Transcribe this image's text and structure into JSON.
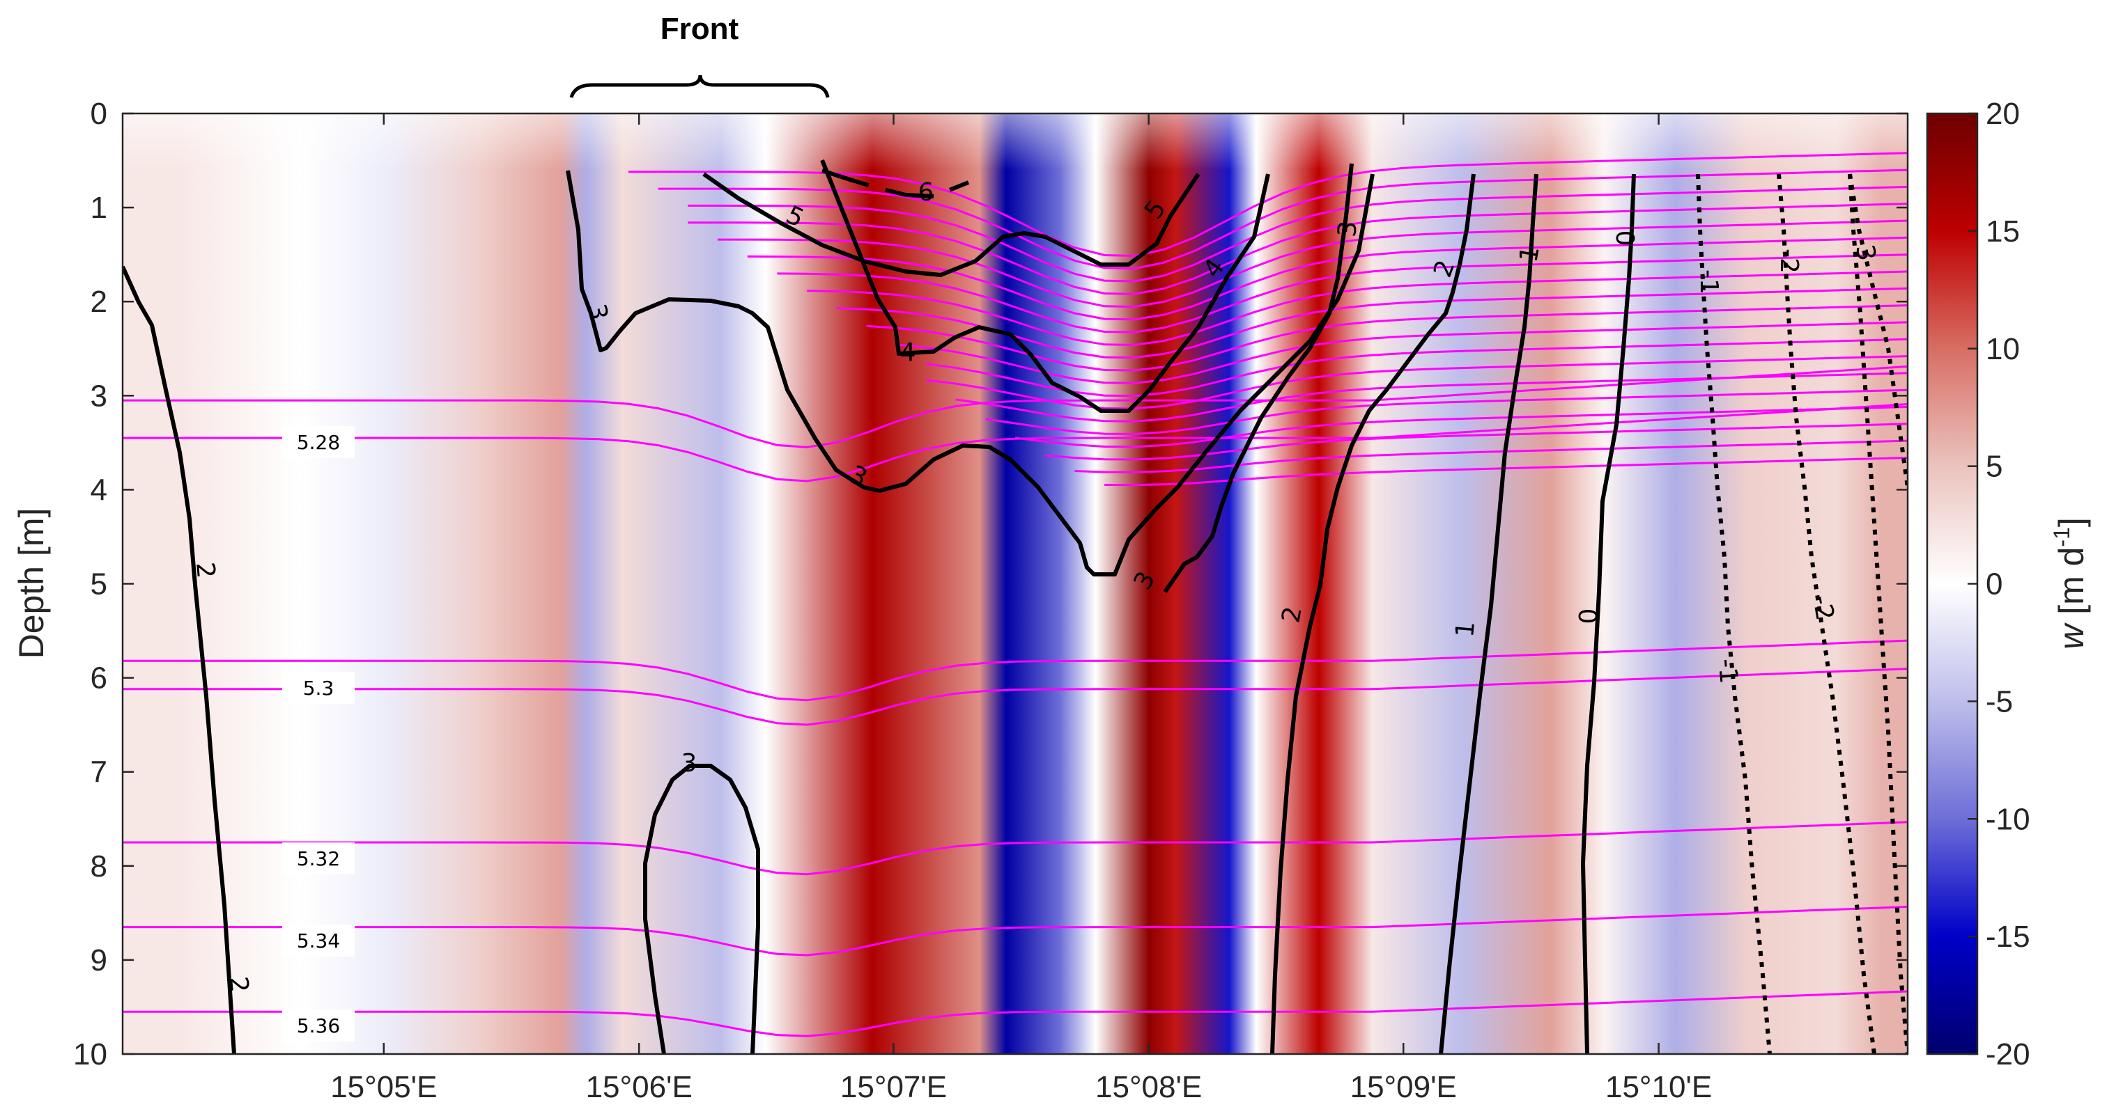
{
  "chart_data": {
    "type": "heatmap",
    "title": "",
    "annotation": "Front",
    "ylabel": "Depth [m]",
    "xlabel": "",
    "yticks": [
      "0",
      "1",
      "2",
      "3",
      "4",
      "5",
      "6",
      "7",
      "8",
      "9",
      "10"
    ],
    "ylim": [
      0,
      10
    ],
    "y_reversed": true,
    "xticks": [
      "15°05'E",
      "15°06'E",
      "15°07'E",
      "15°08'E",
      "15°09'E",
      "15°10'E"
    ],
    "colorbar": {
      "label_var": "w",
      "label_units": " [m d",
      "label_exp": "-1",
      "label_close": "]",
      "ticks": [
        "20",
        "15",
        "10",
        "5",
        "0",
        "-5",
        "-10",
        "-15",
        "-20"
      ],
      "range": [
        -20,
        20
      ],
      "colormap": "blue-white-red"
    },
    "w_field_columns": [
      {
        "x": 0.03,
        "w": 2
      },
      {
        "x": 0.1,
        "w": 0
      },
      {
        "x": 0.15,
        "w": -1.5
      },
      {
        "x": 0.2,
        "w": 4
      },
      {
        "x": 0.245,
        "w": 7
      },
      {
        "x": 0.26,
        "w": -6
      },
      {
        "x": 0.28,
        "w": 3
      },
      {
        "x": 0.335,
        "w": -5
      },
      {
        "x": 0.36,
        "w": 0
      },
      {
        "x": 0.42,
        "w": 16
      },
      {
        "x": 0.48,
        "w": 8
      },
      {
        "x": 0.495,
        "w": -17
      },
      {
        "x": 0.525,
        "w": -10
      },
      {
        "x": 0.545,
        "w": 0
      },
      {
        "x": 0.575,
        "w": 18
      },
      {
        "x": 0.59,
        "w": 14
      },
      {
        "x": 0.62,
        "w": -14
      },
      {
        "x": 0.635,
        "w": 0
      },
      {
        "x": 0.67,
        "w": 15
      },
      {
        "x": 0.7,
        "w": 2
      },
      {
        "x": 0.75,
        "w": -5
      },
      {
        "x": 0.8,
        "w": 7
      },
      {
        "x": 0.83,
        "w": 1
      },
      {
        "x": 0.87,
        "w": -6
      },
      {
        "x": 0.91,
        "w": 4
      },
      {
        "x": 0.96,
        "w": 3
      },
      {
        "x": 0.985,
        "w": 6
      }
    ],
    "black_contour_labels": [
      "6",
      "5",
      "5",
      "4",
      "4",
      "3",
      "3",
      "3",
      "3",
      "3",
      "3",
      "2",
      "2",
      "2",
      "2",
      "1",
      "1",
      "0",
      "0",
      "-1",
      "-1",
      "-2",
      "-2",
      "-3"
    ],
    "magenta_contour_labels": [
      "5.28",
      "5.3",
      "5.32",
      "5.34",
      "5.36"
    ]
  }
}
